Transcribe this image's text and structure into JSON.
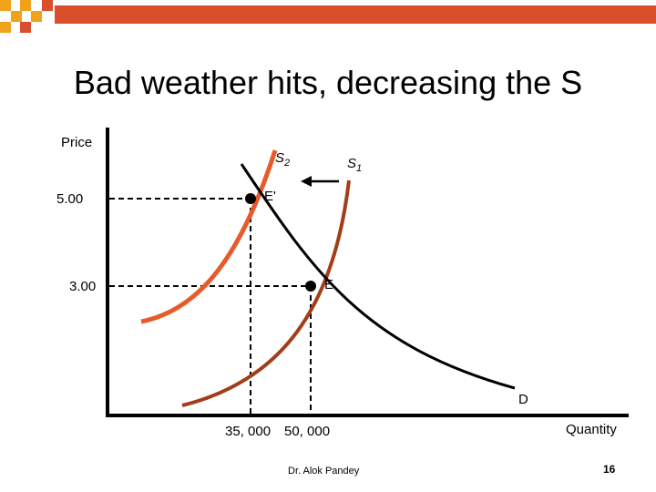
{
  "slide": {
    "title": "Bad weather hits,  decreasing the S",
    "author": "Dr. Alok Pandey",
    "page_number": "16"
  },
  "graph": {
    "y_axis_label": "Price",
    "x_axis_label": "Quantity",
    "price_high": "5.00",
    "price_low": "3.00",
    "qty_low": "35, 000",
    "qty_high": "50, 000",
    "supply_new": {
      "letter": "S",
      "subscript": "2"
    },
    "supply_old": {
      "letter": "S",
      "subscript": "1"
    },
    "demand_label": "D",
    "eq_new_label": "E'",
    "eq_old_label": "E"
  },
  "colors": {
    "supply_new": "#e85a2a",
    "supply_old": "#a23d1a",
    "demand": "#000000",
    "deco_red": "#d94f2b",
    "deco_orange": "#f0a21a"
  }
}
